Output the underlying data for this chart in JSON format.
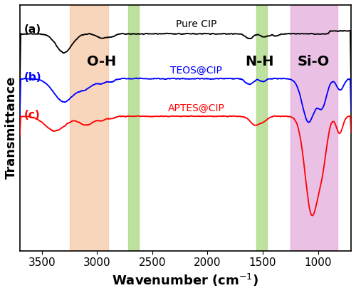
{
  "title": "",
  "xlabel": "Wavenumber (cm$^{-1}$)",
  "ylabel": "Transmittance",
  "xlim": [
    3700,
    700
  ],
  "background_color": "#ffffff",
  "shaded_regions": {
    "orange": {
      "xmin": 2900,
      "xmax": 3250,
      "color": "#f5c5a0",
      "alpha": 0.7
    },
    "green1": {
      "xmin": 2620,
      "xmax": 2720,
      "color": "#a8d880",
      "alpha": 0.75
    },
    "green2": {
      "xmin": 1460,
      "xmax": 1560,
      "color": "#a8d880",
      "alpha": 0.75
    },
    "purple": {
      "xmin": 820,
      "xmax": 1250,
      "color": "#e0a0d8",
      "alpha": 0.65
    }
  },
  "band_labels": [
    {
      "text": "O-H",
      "x": 3050,
      "fontsize": 14,
      "fontweight": "bold",
      "color": "black"
    },
    {
      "text": "N-H",
      "x": 1650,
      "fontsize": 14,
      "fontweight": "bold",
      "color": "black"
    },
    {
      "text": "Si-O",
      "x": 1040,
      "fontsize": 14,
      "fontweight": "bold",
      "color": "black"
    }
  ],
  "spectrum_labels": [
    {
      "text": "Pure CIP",
      "x": 2100,
      "color": "black",
      "fontsize": 10
    },
    {
      "text": "TEOS@CIP",
      "x": 2100,
      "color": "blue",
      "fontsize": 10
    },
    {
      "text": "APTES@CIP",
      "x": 2100,
      "color": "red",
      "fontsize": 10
    }
  ],
  "panel_labels": [
    {
      "text": "(a)",
      "color": "black",
      "fontsize": 11,
      "fontweight": "bold"
    },
    {
      "text": "(b)",
      "color": "blue",
      "fontsize": 11,
      "fontweight": "bold"
    },
    {
      "text": "(c)",
      "color": "red",
      "fontsize": 11,
      "fontweight": "bold"
    }
  ],
  "xticks": [
    3500,
    3000,
    2500,
    2000,
    1500,
    1000
  ],
  "tick_fontsize": 11,
  "axis_label_fontsize": 13
}
